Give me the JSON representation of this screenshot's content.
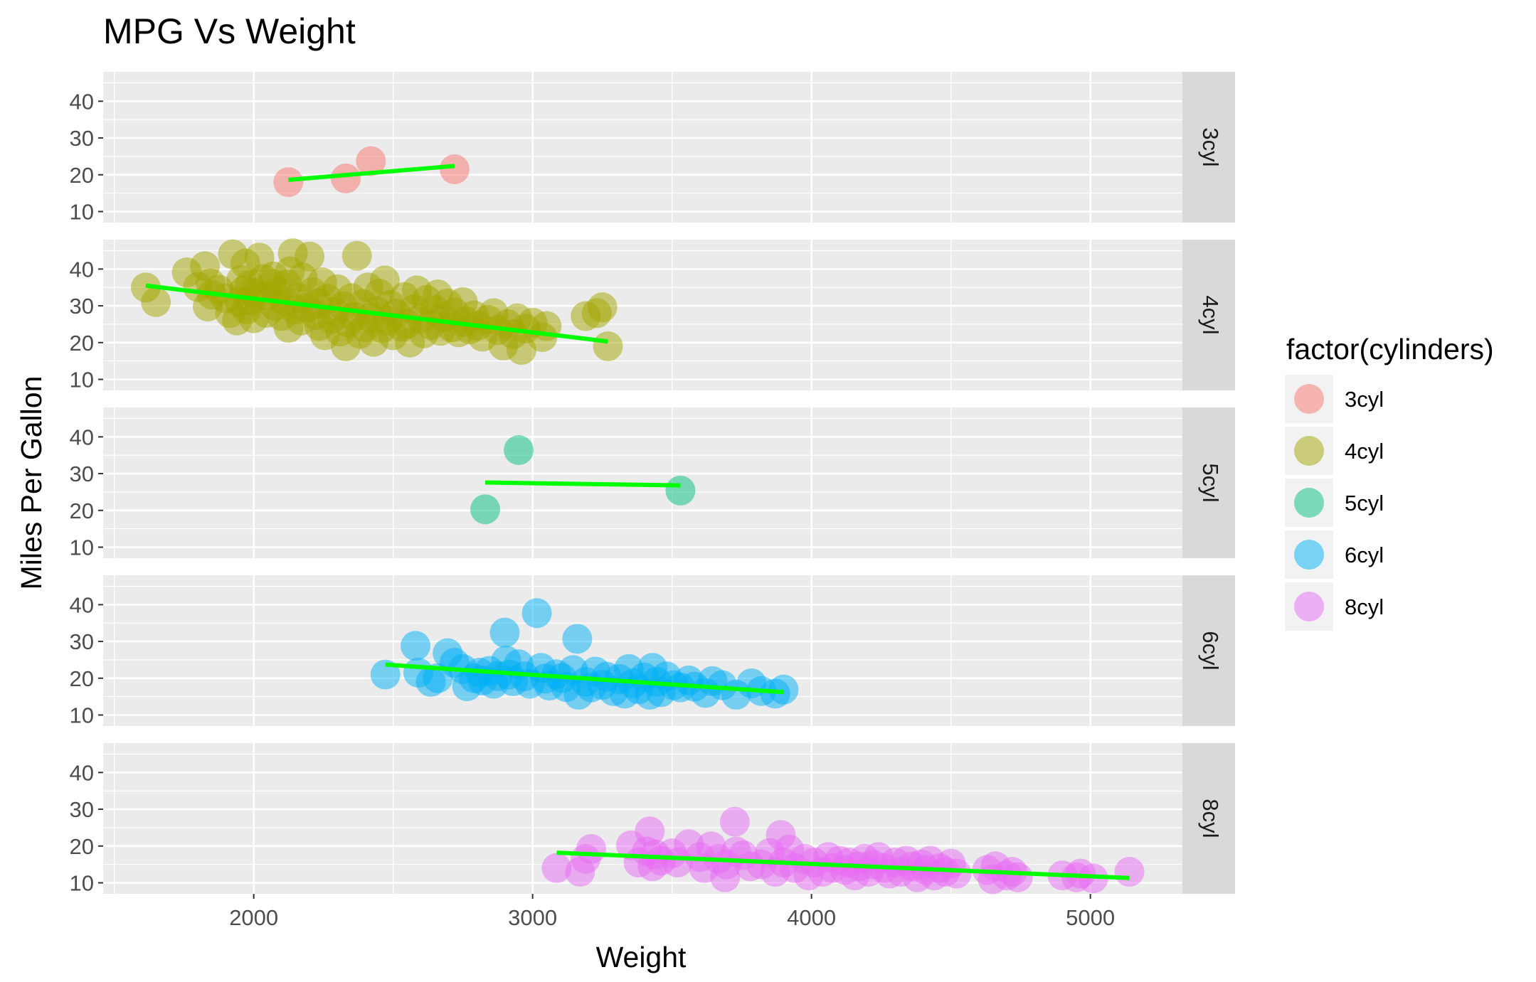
{
  "chart_data": {
    "type": "scatter",
    "title": "MPG Vs Weight",
    "xlabel": "Weight",
    "ylabel": "Miles Per Gallon",
    "xlim": [
      1460,
      5330
    ],
    "ylim": [
      7,
      48
    ],
    "xticks": [
      "2000",
      "3000",
      "4000",
      "5000"
    ],
    "yticks": [
      "10",
      "20",
      "30",
      "40"
    ],
    "grid": true,
    "facet": "rows",
    "legend": {
      "title": "factor(cylinders)",
      "position": "right",
      "entries": [
        "3cyl",
        "4cyl",
        "5cyl",
        "6cyl",
        "8cyl"
      ]
    },
    "trend_line_color": "#00ff00",
    "series": [
      {
        "name": "3cyl",
        "color": "#F8766D",
        "points": [
          [
            2124,
            18
          ],
          [
            2330,
            19
          ],
          [
            2420,
            23.7
          ],
          [
            2720,
            21.5
          ]
        ],
        "fit": [
          [
            2124,
            18.6
          ],
          [
            2720,
            22.4
          ]
        ]
      },
      {
        "name": "4cyl",
        "color": "#A3A500",
        "points": [
          [
            1613,
            35
          ],
          [
            1649,
            31
          ],
          [
            1760,
            39.1
          ],
          [
            1800,
            35.1
          ],
          [
            1825,
            40.8
          ],
          [
            1835,
            29.8
          ],
          [
            1845,
            36.1
          ],
          [
            1850,
            33
          ],
          [
            1875,
            34.4
          ],
          [
            1900,
            32
          ],
          [
            1915,
            28
          ],
          [
            1925,
            44
          ],
          [
            1940,
            26
          ],
          [
            1950,
            31
          ],
          [
            1955,
            37
          ],
          [
            1965,
            34.1
          ],
          [
            1970,
            41.5
          ],
          [
            1975,
            29
          ],
          [
            1985,
            35.7
          ],
          [
            1990,
            31.5
          ],
          [
            2000,
            26.6
          ],
          [
            2000,
            33.5
          ],
          [
            2020,
            43.1
          ],
          [
            2035,
            37.3
          ],
          [
            2045,
            28.1
          ],
          [
            2050,
            32.8
          ],
          [
            2065,
            36
          ],
          [
            2070,
            38
          ],
          [
            2075,
            30
          ],
          [
            2085,
            34
          ],
          [
            2100,
            27.2
          ],
          [
            2110,
            31.3
          ],
          [
            2120,
            35.8
          ],
          [
            2125,
            24
          ],
          [
            2130,
            39.4
          ],
          [
            2140,
            44.3
          ],
          [
            2150,
            28.9
          ],
          [
            2160,
            32.2
          ],
          [
            2170,
            26
          ],
          [
            2175,
            37.7
          ],
          [
            2190,
            29.5
          ],
          [
            2200,
            43.4
          ],
          [
            2210,
            33.7
          ],
          [
            2220,
            27.5
          ],
          [
            2230,
            30.7
          ],
          [
            2235,
            24.5
          ],
          [
            2245,
            36.4
          ],
          [
            2255,
            22
          ],
          [
            2265,
            31.9
          ],
          [
            2280,
            26.4
          ],
          [
            2290,
            28.4
          ],
          [
            2300,
            34.5
          ],
          [
            2310,
            23
          ],
          [
            2320,
            29.9
          ],
          [
            2330,
            19
          ],
          [
            2340,
            25.4
          ],
          [
            2350,
            32.1
          ],
          [
            2360,
            27
          ],
          [
            2370,
            43.6
          ],
          [
            2380,
            22.4
          ],
          [
            2390,
            30.5
          ],
          [
            2400,
            24.2
          ],
          [
            2410,
            35
          ],
          [
            2420,
            26.8
          ],
          [
            2430,
            20.2
          ],
          [
            2440,
            28.6
          ],
          [
            2450,
            33.3
          ],
          [
            2460,
            23.9
          ],
          [
            2470,
            36.9
          ],
          [
            2480,
            26
          ],
          [
            2490,
            30.2
          ],
          [
            2500,
            22
          ],
          [
            2510,
            27.9
          ],
          [
            2530,
            24.3
          ],
          [
            2540,
            32.4
          ],
          [
            2550,
            25.1
          ],
          [
            2560,
            20
          ],
          [
            2575,
            29.1
          ],
          [
            2585,
            34.2
          ],
          [
            2600,
            26.5
          ],
          [
            2610,
            22.5
          ],
          [
            2620,
            31.6
          ],
          [
            2635,
            24.8
          ],
          [
            2650,
            28.8
          ],
          [
            2660,
            33.1
          ],
          [
            2670,
            23.2
          ],
          [
            2680,
            26.9
          ],
          [
            2695,
            30.6
          ],
          [
            2710,
            24.1
          ],
          [
            2720,
            28.2
          ],
          [
            2735,
            22.8
          ],
          [
            2750,
            31
          ],
          [
            2760,
            25.7
          ],
          [
            2775,
            23.6
          ],
          [
            2790,
            27.4
          ],
          [
            2805,
            24.6
          ],
          [
            2820,
            21.6
          ],
          [
            2840,
            26.2
          ],
          [
            2860,
            28
          ],
          [
            2875,
            23.4
          ],
          [
            2895,
            19.2
          ],
          [
            2910,
            25
          ],
          [
            2930,
            22.3
          ],
          [
            2945,
            26.6
          ],
          [
            2960,
            18
          ],
          [
            2975,
            23.8
          ],
          [
            3000,
            25.4
          ],
          [
            3035,
            21.5
          ],
          [
            3050,
            24.5
          ],
          [
            3190,
            27.2
          ],
          [
            3230,
            28
          ],
          [
            3250,
            29.6
          ],
          [
            3270,
            19
          ]
        ],
        "fit": [
          [
            1613,
            35.5
          ],
          [
            3270,
            20.3
          ]
        ]
      },
      {
        "name": "5cyl",
        "color": "#00BF7D",
        "points": [
          [
            2830,
            20.3
          ],
          [
            2950,
            36.4
          ],
          [
            3530,
            25.4
          ]
        ],
        "fit": [
          [
            2830,
            27.6
          ],
          [
            3530,
            26.8
          ]
        ]
      },
      {
        "name": "6cyl",
        "color": "#00B0F6",
        "points": [
          [
            2472,
            21
          ],
          [
            2580,
            28.8
          ],
          [
            2590,
            21.5
          ],
          [
            2635,
            19
          ],
          [
            2660,
            20
          ],
          [
            2695,
            26.8
          ],
          [
            2720,
            24.2
          ],
          [
            2750,
            22.5
          ],
          [
            2765,
            17.8
          ],
          [
            2790,
            20
          ],
          [
            2810,
            21.5
          ],
          [
            2820,
            19.4
          ],
          [
            2845,
            22
          ],
          [
            2860,
            18.5
          ],
          [
            2875,
            20.6
          ],
          [
            2900,
            32.4
          ],
          [
            2905,
            24.8
          ],
          [
            2915,
            21
          ],
          [
            2930,
            19.2
          ],
          [
            2950,
            23.8
          ],
          [
            2970,
            20.5
          ],
          [
            2990,
            18.5
          ],
          [
            3015,
            37.7
          ],
          [
            3030,
            22.8
          ],
          [
            3045,
            19.9
          ],
          [
            3060,
            18
          ],
          [
            3085,
            21.1
          ],
          [
            3105,
            20
          ],
          [
            3120,
            17.6
          ],
          [
            3145,
            22.2
          ],
          [
            3160,
            30.7
          ],
          [
            3165,
            15.5
          ],
          [
            3190,
            19
          ],
          [
            3210,
            17.5
          ],
          [
            3225,
            21.8
          ],
          [
            3250,
            18.2
          ],
          [
            3265,
            20.4
          ],
          [
            3290,
            16.5
          ],
          [
            3310,
            19.8
          ],
          [
            3330,
            15.8
          ],
          [
            3345,
            22.5
          ],
          [
            3360,
            18.6
          ],
          [
            3380,
            17
          ],
          [
            3400,
            20.2
          ],
          [
            3420,
            15.5
          ],
          [
            3430,
            22.8
          ],
          [
            3445,
            19
          ],
          [
            3460,
            16.2
          ],
          [
            3480,
            20.5
          ],
          [
            3505,
            18.1
          ],
          [
            3530,
            17.5
          ],
          [
            3560,
            19.4
          ],
          [
            3580,
            17.7
          ],
          [
            3620,
            16
          ],
          [
            3645,
            19.2
          ],
          [
            3680,
            18.1
          ],
          [
            3730,
            15.5
          ],
          [
            3785,
            18.6
          ],
          [
            3820,
            16.5
          ],
          [
            3870,
            15.8
          ],
          [
            3900,
            16.9
          ]
        ],
        "fit": [
          [
            2472,
            23.7
          ],
          [
            3900,
            16.2
          ]
        ]
      },
      {
        "name": "8cyl",
        "color": "#E76BF3",
        "points": [
          [
            3086,
            14
          ],
          [
            3170,
            13
          ],
          [
            3190,
            16.5
          ],
          [
            3210,
            19.2
          ],
          [
            3353,
            20.2
          ],
          [
            3380,
            15.5
          ],
          [
            3410,
            18.5
          ],
          [
            3420,
            24
          ],
          [
            3430,
            14.5
          ],
          [
            3440,
            17.7
          ],
          [
            3460,
            16
          ],
          [
            3500,
            18
          ],
          [
            3520,
            15.5
          ],
          [
            3560,
            20.5
          ],
          [
            3600,
            17
          ],
          [
            3615,
            14
          ],
          [
            3640,
            19.9
          ],
          [
            3665,
            16.5
          ],
          [
            3690,
            11.5
          ],
          [
            3695,
            15
          ],
          [
            3725,
            26.6
          ],
          [
            3730,
            18.5
          ],
          [
            3755,
            17.5
          ],
          [
            3780,
            14.5
          ],
          [
            3820,
            15
          ],
          [
            3850,
            18.1
          ],
          [
            3870,
            13
          ],
          [
            3890,
            23
          ],
          [
            3900,
            15.5
          ],
          [
            3920,
            19
          ],
          [
            3940,
            14
          ],
          [
            3975,
            16.5
          ],
          [
            3990,
            12
          ],
          [
            4010,
            15.5
          ],
          [
            4040,
            13
          ],
          [
            4060,
            17
          ],
          [
            4075,
            14
          ],
          [
            4100,
            16
          ],
          [
            4120,
            13.5
          ],
          [
            4135,
            15.5
          ],
          [
            4155,
            12
          ],
          [
            4170,
            14.5
          ],
          [
            4190,
            16.5
          ],
          [
            4205,
            13
          ],
          [
            4220,
            15
          ],
          [
            4240,
            17
          ],
          [
            4260,
            14
          ],
          [
            4280,
            12.5
          ],
          [
            4300,
            15.5
          ],
          [
            4320,
            13
          ],
          [
            4340,
            16
          ],
          [
            4360,
            14.5
          ],
          [
            4380,
            11.5
          ],
          [
            4395,
            15
          ],
          [
            4410,
            13.5
          ],
          [
            4425,
            16
          ],
          [
            4440,
            12
          ],
          [
            4460,
            14
          ],
          [
            4480,
            13
          ],
          [
            4500,
            15.2
          ],
          [
            4520,
            12.5
          ],
          [
            4630,
            13.5
          ],
          [
            4650,
            11
          ],
          [
            4660,
            14.5
          ],
          [
            4700,
            12
          ],
          [
            4720,
            13
          ],
          [
            4740,
            11.5
          ],
          [
            4900,
            12
          ],
          [
            4950,
            11.5
          ],
          [
            4965,
            12.5
          ],
          [
            5010,
            11.2
          ],
          [
            5140,
            13
          ]
        ],
        "fit": [
          [
            3086,
            18.2
          ],
          [
            5140,
            11.3
          ]
        ]
      }
    ]
  }
}
